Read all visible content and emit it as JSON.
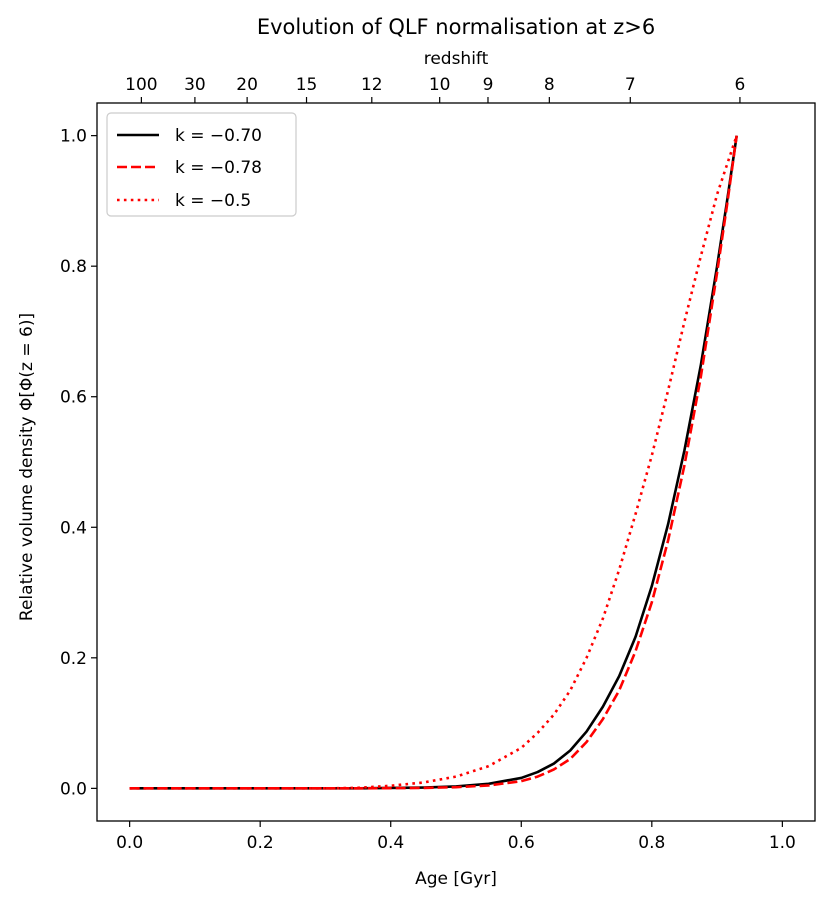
{
  "chart_data": {
    "type": "line",
    "title": "Evolution of QLF normalisation at z>6",
    "xlabel": "Age [Gyr]",
    "ylabel": "Relative volume density Φ[Φ(z = 6)]",
    "secondary_xlabel": "redshift",
    "xlim": [
      -0.05,
      1.05
    ],
    "ylim": [
      -0.05,
      1.05
    ],
    "x_ticks": [
      0.0,
      0.2,
      0.4,
      0.6,
      0.8,
      1.0
    ],
    "x_tick_labels": [
      "0.0",
      "0.2",
      "0.4",
      "0.6",
      "0.8",
      "1.0"
    ],
    "y_ticks": [
      0.0,
      0.2,
      0.4,
      0.6,
      0.8,
      1.0
    ],
    "y_tick_labels": [
      "0.0",
      "0.2",
      "0.4",
      "0.6",
      "0.8",
      "1.0"
    ],
    "top_ticks": [
      {
        "label": "100",
        "age": 0.018
      },
      {
        "label": "30",
        "age": 0.1
      },
      {
        "label": "20",
        "age": 0.18
      },
      {
        "label": "15",
        "age": 0.271
      },
      {
        "label": "12",
        "age": 0.371
      },
      {
        "label": "10",
        "age": 0.475
      },
      {
        "label": "9",
        "age": 0.549
      },
      {
        "label": "8",
        "age": 0.643
      },
      {
        "label": "7",
        "age": 0.767
      },
      {
        "label": "6",
        "age": 0.935
      }
    ],
    "x": [
      0.0,
      0.05,
      0.1,
      0.15,
      0.2,
      0.25,
      0.3,
      0.35,
      0.4,
      0.45,
      0.5,
      0.55,
      0.6,
      0.625,
      0.65,
      0.675,
      0.7,
      0.725,
      0.75,
      0.775,
      0.8,
      0.825,
      0.85,
      0.875,
      0.9,
      0.915,
      0.93
    ],
    "series": [
      {
        "name": "k = −0.70",
        "legend_label": "k = −0.70",
        "color": "#000000",
        "style": "solid",
        "values": [
          0.0,
          0.0,
          0.0,
          0.0,
          0.0,
          0.0,
          0.0,
          0.0,
          0.0006,
          0.0013,
          0.003,
          0.007,
          0.016,
          0.025,
          0.038,
          0.058,
          0.087,
          0.125,
          0.172,
          0.232,
          0.31,
          0.405,
          0.518,
          0.648,
          0.8,
          0.898,
          1.0
        ]
      },
      {
        "name": "k = −0.78",
        "legend_label": "k = −0.78",
        "color": "#ff0000",
        "style": "dashed",
        "values": [
          0.0,
          0.0,
          0.0,
          0.0,
          0.0,
          0.0,
          0.0,
          0.0,
          0.0003,
          0.0007,
          0.0018,
          0.0045,
          0.011,
          0.018,
          0.029,
          0.045,
          0.071,
          0.106,
          0.15,
          0.21,
          0.285,
          0.38,
          0.495,
          0.63,
          0.79,
          0.892,
          1.0
        ]
      },
      {
        "name": "k = −0.5",
        "legend_label": "k = −0.5",
        "color": "#ff0000",
        "style": "dotted",
        "values": [
          0.0,
          0.0,
          0.0,
          0.0,
          0.0,
          0.0,
          0.0,
          0.0008,
          0.004,
          0.009,
          0.018,
          0.034,
          0.062,
          0.085,
          0.113,
          0.15,
          0.2,
          0.26,
          0.335,
          0.42,
          0.51,
          0.61,
          0.715,
          0.815,
          0.91,
          0.955,
          1.0
        ]
      }
    ],
    "legend_position": "upper-left",
    "grid": false
  }
}
